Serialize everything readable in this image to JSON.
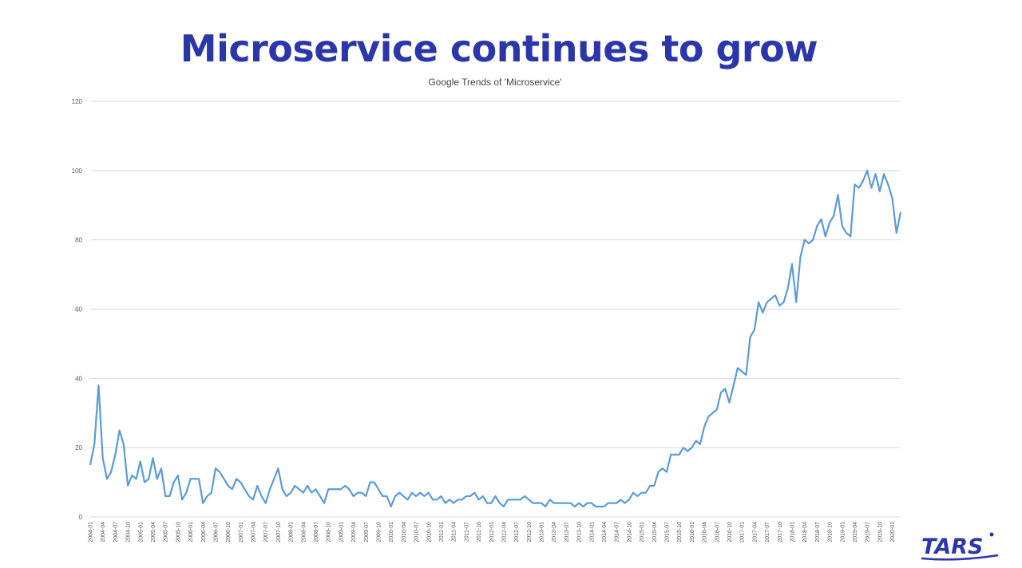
{
  "slide": {
    "title": "Microservice continues to grow"
  },
  "logo": {
    "text": "TARS",
    "color": "#2b37a8"
  },
  "chart_data": {
    "type": "line",
    "title": "Google Trends of 'Microservice'",
    "xlabel": "",
    "ylabel": "",
    "ylim": [
      0,
      120
    ],
    "yticks": [
      0,
      20,
      40,
      60,
      80,
      100,
      120
    ],
    "grid": true,
    "legend": "none",
    "x_start": "2004-01",
    "x_tick_interval_months": 3,
    "series": [
      {
        "name": "Microservice",
        "color": "#5b9bd5",
        "values": [
          15,
          21,
          38,
          17,
          11,
          13,
          18,
          25,
          21,
          9,
          12,
          11,
          16,
          10,
          11,
          17,
          11,
          14,
          6,
          6,
          10,
          12,
          5,
          7,
          11,
          11,
          11,
          4,
          6,
          7,
          14,
          13,
          11,
          9,
          8,
          11,
          10,
          8,
          6,
          5,
          9,
          6,
          4,
          8,
          11,
          14,
          8,
          6,
          7,
          9,
          8,
          7,
          9,
          7,
          8,
          6,
          4,
          8,
          8,
          8,
          8,
          9,
          8,
          6,
          7,
          7,
          6,
          10,
          10,
          8,
          6,
          6,
          3,
          6,
          7,
          6,
          5,
          7,
          6,
          7,
          6,
          7,
          5,
          5,
          6,
          4,
          5,
          4,
          5,
          5,
          6,
          6,
          7,
          5,
          6,
          4,
          4,
          6,
          4,
          3,
          5,
          5,
          5,
          5,
          6,
          5,
          4,
          4,
          4,
          3,
          5,
          4,
          4,
          4,
          4,
          4,
          3,
          4,
          3,
          4,
          4,
          3,
          3,
          3,
          4,
          4,
          4,
          5,
          4,
          5,
          7,
          6,
          7,
          7,
          9,
          9,
          13,
          14,
          13,
          18,
          18,
          18,
          20,
          19,
          20,
          22,
          21,
          26,
          29,
          30,
          31,
          36,
          37,
          33,
          38,
          43,
          42,
          41,
          52,
          54,
          62,
          59,
          62,
          63,
          64,
          61,
          62,
          66,
          73,
          62,
          75,
          80,
          79,
          80,
          84,
          86,
          81,
          85,
          87,
          93,
          84,
          82,
          81,
          96,
          95,
          97,
          100,
          95,
          99,
          94,
          99,
          96,
          92,
          82,
          88
        ]
      }
    ]
  }
}
